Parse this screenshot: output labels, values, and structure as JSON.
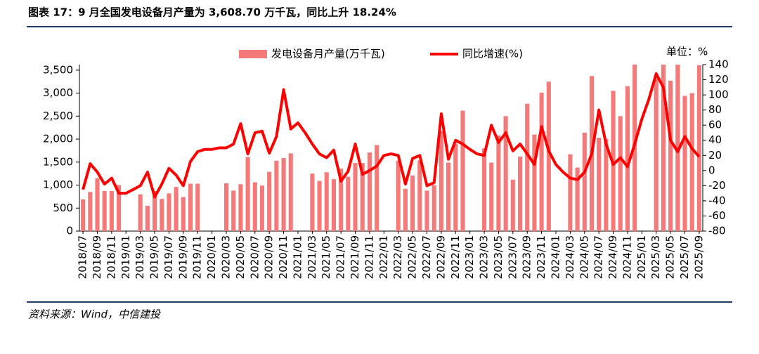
{
  "chart_data": {
    "type": "bar_line",
    "title": "图表 17：9 月全国发电设备月产量为 3,608.70  万千瓦，同比上升 18.24%",
    "source": "资料来源：Wind，中信建投",
    "y2_unit": "单位：%",
    "categories": [
      "2018/07",
      null,
      "2018/09",
      null,
      "2018/11",
      null,
      "2019/01",
      null,
      "2019/03",
      null,
      "2019/05",
      null,
      "2019/07",
      null,
      "2019/09",
      null,
      "2019/11",
      null,
      "2020/01",
      null,
      "2020/03",
      null,
      "2020/05",
      null,
      "2020/07",
      null,
      "2020/09",
      null,
      "2020/11",
      null,
      "2021/01",
      null,
      "2021/03",
      null,
      "2021/05",
      null,
      "2021/07",
      null,
      "2021/09",
      null,
      "2021/11",
      null,
      "2022/01",
      null,
      "2022/03",
      null,
      "2022/05",
      null,
      "2022/07",
      null,
      "2022/09",
      null,
      "2022/11",
      null,
      "2023/01",
      null,
      "2023/03",
      null,
      "2023/05",
      null,
      "2023/07",
      null,
      "2023/09",
      null,
      "2023/11",
      null,
      "2024/01",
      null,
      "2024/03",
      null,
      "2024/05",
      null,
      "2024/07",
      null,
      "2024/09",
      null,
      "2024/11",
      null,
      "2025/01",
      null,
      "2025/03",
      null,
      "2025/05",
      null,
      "2025/07",
      null,
      "2025/09"
    ],
    "series": [
      {
        "name": "发电设备月产量(万千瓦)",
        "type": "bar",
        "color": "#f47a7a",
        "values": [
          690,
          850,
          1150,
          870,
          870,
          1000,
          null,
          null,
          800,
          550,
          870,
          700,
          820,
          960,
          740,
          1030,
          1030,
          null,
          null,
          null,
          1040,
          880,
          1020,
          1610,
          1060,
          990,
          1290,
          1530,
          1590,
          1690,
          null,
          null,
          1250,
          1090,
          1280,
          1130,
          1360,
          1180,
          1480,
          1480,
          1710,
          1870,
          null,
          null,
          1530,
          920,
          1210,
          1540,
          880,
          1000,
          2180,
          1490,
          1900,
          2620,
          null,
          null,
          1800,
          1490,
          2080,
          2500,
          1120,
          1620,
          2770,
          2100,
          3010,
          3250,
          null,
          null,
          1670,
          1380,
          2140,
          3370,
          2030,
          2000,
          3050,
          2500,
          3150,
          3620,
          null,
          null,
          3320,
          3620,
          3270,
          3620,
          2940,
          3000,
          3608.7
        ]
      },
      {
        "name": "同比增速(%)",
        "type": "line",
        "axis": "y2",
        "color": "#ff0000",
        "values": [
          -25,
          9,
          -2,
          -18,
          -10,
          -30,
          -30,
          -25,
          -20,
          -2,
          -35,
          -18,
          3,
          -6,
          -20,
          12,
          25,
          28,
          28,
          30,
          30,
          35,
          62,
          22,
          50,
          52,
          23,
          45,
          107,
          55,
          63,
          50,
          35,
          22,
          17,
          27,
          -14,
          -1,
          35,
          -5,
          0,
          6,
          20,
          22,
          20,
          -18,
          16,
          20,
          -20,
          -16,
          75,
          15,
          40,
          35,
          28,
          22,
          20,
          60,
          37,
          50,
          26,
          35,
          22,
          8,
          58,
          26,
          8,
          -2,
          -10,
          -12,
          -2,
          22,
          80,
          35,
          8,
          17,
          5,
          35,
          68,
          95,
          128,
          110,
          40,
          25,
          45,
          29,
          18.24
        ]
      }
    ],
    "ylim": [
      0,
      3620
    ],
    "yticks": [
      0,
      500,
      {
        "value": 1000,
        "label": "1,000"
      },
      {
        "value": 1500,
        "label": "1,500"
      },
      {
        "value": 2000,
        "label": "2,000"
      },
      {
        "value": 2500,
        "label": "2,500"
      },
      {
        "value": 3000,
        "label": "3,000"
      },
      {
        "value": 3500,
        "label": "3,500"
      }
    ],
    "y2lim": [
      -80,
      140
    ],
    "y2ticks": [
      -80,
      -60,
      -40,
      -20,
      0,
      20,
      40,
      60,
      80,
      100,
      120,
      140
    ]
  }
}
